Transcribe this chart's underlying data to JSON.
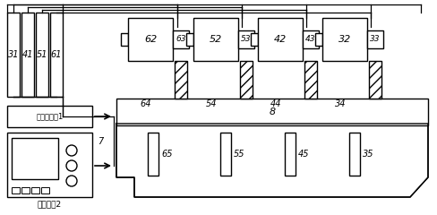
{
  "bg_color": "#ffffff",
  "line_color": "#000000",
  "fig_width": 4.88,
  "fig_height": 2.4,
  "dpi": 100
}
